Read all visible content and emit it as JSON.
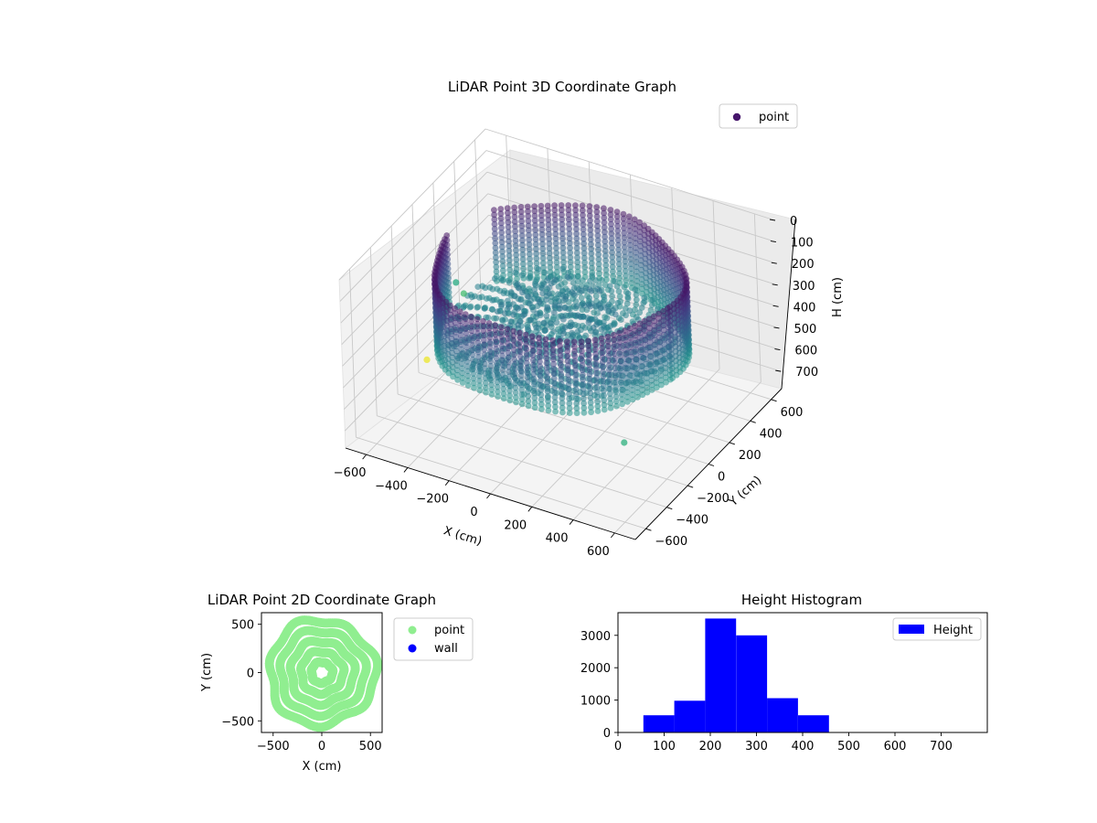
{
  "chart_data": [
    {
      "type": "scatter",
      "projection": "3d",
      "title": "LiDAR Point 3D Coordinate Graph",
      "xlabel": "X (cm)",
      "ylabel": "Y (cm)",
      "zlabel": "H (cm)",
      "xlim": [
        -700,
        700
      ],
      "ylim": [
        -700,
        700
      ],
      "zlim": [
        780,
        0
      ],
      "z_axis_inverted": true,
      "x_ticks": [
        "−600",
        "−400",
        "−200",
        "0",
        "200",
        "400",
        "600"
      ],
      "y_ticks": [
        "−600",
        "−400",
        "−200",
        "0",
        "200",
        "400",
        "600"
      ],
      "z_ticks": [
        "0",
        "100",
        "200",
        "300",
        "400",
        "500",
        "600",
        "700"
      ],
      "colormap": "viridis",
      "legend": {
        "placement": "upper-right",
        "entries": [
          {
            "label": "point",
            "color": "#46166b"
          }
        ]
      },
      "shape": "ring-shaped wall of points around a floor disc",
      "wall_radius_cm": 540,
      "wall_height_range_cm": [
        100,
        450
      ],
      "floor_height_cm": 390,
      "outliers": [
        {
          "x": -660,
          "y": 300,
          "h": 500
        },
        {
          "x": -640,
          "y": 330,
          "h": 560
        },
        {
          "x": -700,
          "y": 80,
          "h": 760
        },
        {
          "x": 520,
          "y": -430,
          "h": 520
        }
      ],
      "grid": true
    },
    {
      "type": "scatter",
      "title": "LiDAR Point 2D Coordinate Graph",
      "xlabel": "X (cm)",
      "ylabel": "Y (cm)",
      "xlim": [
        -620,
        620
      ],
      "ylim": [
        -620,
        620
      ],
      "x_ticks": [
        "−500",
        "0",
        "500"
      ],
      "y_ticks": [
        "−500",
        "0",
        "500"
      ],
      "point_cloud_radius_cm": 570,
      "series": [
        {
          "name": "point",
          "color": "#90ee90",
          "shape": "filled disc of points"
        },
        {
          "name": "wall",
          "color": "#0000ff",
          "shape": "none visible"
        }
      ],
      "legend": {
        "placement": "outside-right"
      }
    },
    {
      "type": "bar",
      "subtype": "histogram",
      "title": "Height Histogram",
      "xlim": [
        0,
        800
      ],
      "ylim": [
        0,
        3700
      ],
      "x_ticks": [
        "0",
        "100",
        "200",
        "300",
        "400",
        "500",
        "600",
        "700"
      ],
      "y_ticks": [
        "0",
        "1000",
        "2000",
        "3000"
      ],
      "bins": [
        {
          "from": 55,
          "to": 122,
          "count": 530
        },
        {
          "from": 122,
          "to": 189,
          "count": 980
        },
        {
          "from": 189,
          "to": 256,
          "count": 3520
        },
        {
          "from": 256,
          "to": 323,
          "count": 3000
        },
        {
          "from": 323,
          "to": 390,
          "count": 1060
        },
        {
          "from": 390,
          "to": 457,
          "count": 530
        },
        {
          "from": 457,
          "to": 524,
          "count": 0
        },
        {
          "from": 524,
          "to": 591,
          "count": 0
        },
        {
          "from": 591,
          "to": 658,
          "count": 0
        },
        {
          "from": 658,
          "to": 725,
          "count": 0
        },
        {
          "from": 725,
          "to": 792,
          "count": 5
        }
      ],
      "series": [
        {
          "name": "Height",
          "color": "#0000ff"
        }
      ],
      "legend": {
        "placement": "top-right"
      }
    }
  ]
}
